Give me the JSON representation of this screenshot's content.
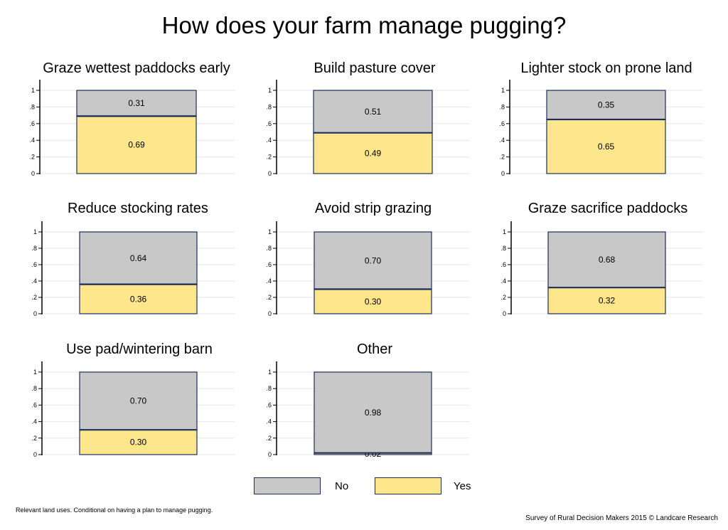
{
  "title": "How does your farm manage pugging?",
  "legend": [
    {
      "label": "No",
      "color": "#c8c8c8"
    },
    {
      "label": "Yes",
      "color": "#fde68c"
    }
  ],
  "footnote_left": "Relevant land uses. Conditional on having a plan to manage pugging.",
  "footnote_right": "Survey of Rural Decision Makers 2015 © Landcare Research",
  "chart_data": [
    {
      "type": "bar",
      "title": "Graze wettest paddocks early",
      "stacked": true,
      "yticks": [
        "0",
        ".2",
        ".4",
        ".6",
        ".8",
        "1"
      ],
      "ylim": [
        0,
        1
      ],
      "series": [
        {
          "name": "Yes",
          "values": [
            0.69
          ]
        },
        {
          "name": "No",
          "values": [
            0.31
          ]
        }
      ],
      "data_labels": {
        "Yes": "0.69",
        "No": "0.31"
      }
    },
    {
      "type": "bar",
      "title": "Build pasture cover",
      "stacked": true,
      "yticks": [
        "0",
        ".2",
        ".4",
        ".6",
        ".8",
        "1"
      ],
      "ylim": [
        0,
        1
      ],
      "series": [
        {
          "name": "Yes",
          "values": [
            0.49
          ]
        },
        {
          "name": "No",
          "values": [
            0.51
          ]
        }
      ],
      "data_labels": {
        "Yes": "0.49",
        "No": "0.51"
      }
    },
    {
      "type": "bar",
      "title": "Lighter stock on prone land",
      "stacked": true,
      "yticks": [
        "0",
        ".2",
        ".4",
        ".6",
        ".8",
        "1"
      ],
      "ylim": [
        0,
        1
      ],
      "series": [
        {
          "name": "Yes",
          "values": [
            0.65
          ]
        },
        {
          "name": "No",
          "values": [
            0.35
          ]
        }
      ],
      "data_labels": {
        "Yes": "0.65",
        "No": "0.35"
      }
    },
    {
      "type": "bar",
      "title": "Reduce stocking rates",
      "stacked": true,
      "yticks": [
        "0",
        ".2",
        ".4",
        ".6",
        ".8",
        "1"
      ],
      "ylim": [
        0,
        1
      ],
      "series": [
        {
          "name": "Yes",
          "values": [
            0.36
          ]
        },
        {
          "name": "No",
          "values": [
            0.64
          ]
        }
      ],
      "data_labels": {
        "Yes": "0.36",
        "No": "0.64"
      }
    },
    {
      "type": "bar",
      "title": "Avoid strip grazing",
      "stacked": true,
      "yticks": [
        "0",
        ".2",
        ".4",
        ".6",
        ".8",
        "1"
      ],
      "ylim": [
        0,
        1
      ],
      "series": [
        {
          "name": "Yes",
          "values": [
            0.3
          ]
        },
        {
          "name": "No",
          "values": [
            0.7
          ]
        }
      ],
      "data_labels": {
        "Yes": "0.30",
        "No": "0.70"
      }
    },
    {
      "type": "bar",
      "title": "Graze sacrifice paddocks",
      "stacked": true,
      "yticks": [
        "0",
        ".2",
        ".4",
        ".6",
        ".8",
        "1"
      ],
      "ylim": [
        0,
        1
      ],
      "series": [
        {
          "name": "Yes",
          "values": [
            0.32
          ]
        },
        {
          "name": "No",
          "values": [
            0.68
          ]
        }
      ],
      "data_labels": {
        "Yes": "0.32",
        "No": "0.68"
      }
    },
    {
      "type": "bar",
      "title": "Use pad/wintering barn",
      "stacked": true,
      "yticks": [
        "0",
        ".2",
        ".4",
        ".6",
        ".8",
        "1"
      ],
      "ylim": [
        0,
        1
      ],
      "series": [
        {
          "name": "Yes",
          "values": [
            0.3
          ]
        },
        {
          "name": "No",
          "values": [
            0.7
          ]
        }
      ],
      "data_labels": {
        "Yes": "0.30",
        "No": "0.70"
      }
    },
    {
      "type": "bar",
      "title": "Other",
      "stacked": true,
      "yticks": [
        "0",
        ".2",
        ".4",
        ".6",
        ".8",
        "1"
      ],
      "ylim": [
        0,
        1
      ],
      "series": [
        {
          "name": "Yes",
          "values": [
            0.02
          ]
        },
        {
          "name": "No",
          "values": [
            0.98
          ]
        }
      ],
      "data_labels": {
        "Yes": "0.02",
        "No": "0.98"
      }
    }
  ]
}
